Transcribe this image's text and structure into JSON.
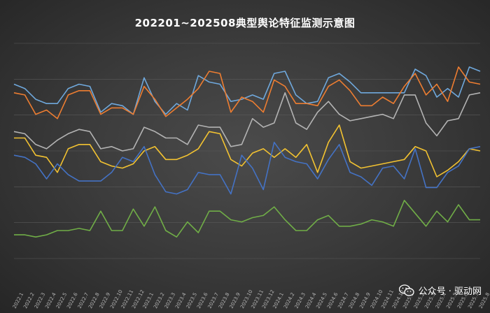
{
  "title": "202201~202508典型舆论特征监测示意图",
  "watermark": {
    "text": "公众号 · 驱动网",
    "icon": "wechat-icon"
  },
  "colors": {
    "background": "#3d3d3d"
  },
  "chart_data": {
    "type": "line",
    "title": "202201~202508典型舆论特征监测示意图",
    "xlabel": "",
    "ylabel": "",
    "grid": true,
    "legend": "none",
    "ylim": [
      0,
      100
    ],
    "x": [
      "2022.1",
      "2022.2",
      "2022.3",
      "2022.4",
      "2022.5",
      "2022.6",
      "2022.7",
      "2022.8",
      "2022.9",
      "2022.10",
      "2022.11",
      "2022.12",
      "2023.1",
      "2023.2",
      "2023.3",
      "2023.4",
      "2023.5",
      "2023.6",
      "2023.7",
      "2023.8",
      "2023.9",
      "2023.10",
      "2023.11",
      "2023.12",
      "2024.1",
      "2024.2",
      "2024.3",
      "2024.4",
      "2024.5",
      "2024.6",
      "2024.7",
      "2024.8",
      "2024.9",
      "2024.10",
      "2024.11",
      "2024.12",
      "2025.1",
      "2025.2",
      "2025.3",
      "2025.4",
      "2025.5",
      "2025.6",
      "2025.7",
      "2025.8"
    ],
    "series": [
      {
        "color": "#6fa8dc",
        "values": [
          81,
          79,
          74,
          72,
          72,
          79,
          81,
          80,
          68,
          72,
          71,
          67,
          84,
          73,
          67,
          72,
          69,
          85,
          82,
          81,
          73,
          74,
          76,
          74,
          86,
          87,
          76,
          72,
          73,
          84,
          86,
          82,
          77,
          77,
          77,
          77,
          77,
          88,
          85,
          75,
          79,
          75,
          89,
          87
        ]
      },
      {
        "color": "#ed7d31",
        "values": [
          77,
          76,
          67,
          69,
          65,
          76,
          78,
          78,
          67,
          70,
          70,
          67,
          80,
          74,
          66,
          70,
          74,
          79,
          87,
          86,
          68,
          75,
          73,
          68,
          83,
          80,
          72,
          72,
          71,
          80,
          83,
          78,
          71,
          71,
          75,
          72,
          80,
          86,
          76,
          81,
          73,
          89,
          82,
          81
        ]
      },
      {
        "color": "#b3b3b3",
        "values": [
          59,
          58,
          53,
          51,
          55,
          58,
          60,
          59,
          51,
          52,
          50,
          51,
          61,
          59,
          56,
          56,
          53,
          62,
          61,
          61,
          52,
          53,
          65,
          61,
          63,
          77,
          63,
          60,
          68,
          73,
          67,
          64,
          65,
          66,
          67,
          65,
          76,
          76,
          63,
          57,
          64,
          65,
          76,
          77
        ]
      },
      {
        "color": "#f2c231",
        "values": [
          56,
          56,
          48,
          47,
          40,
          51,
          53,
          53,
          45,
          43,
          42,
          44,
          50,
          52,
          46,
          46,
          48,
          51,
          59,
          58,
          46,
          43,
          49,
          51,
          47,
          51,
          47,
          53,
          40,
          54,
          62,
          45,
          42,
          43,
          44,
          45,
          46,
          52,
          50,
          38,
          41,
          45,
          51,
          50
        ]
      },
      {
        "color": "#4472c4",
        "values": [
          48,
          47,
          44,
          37,
          44,
          39,
          36,
          36,
          36,
          40,
          47,
          45,
          52,
          39,
          31,
          30,
          32,
          40,
          39,
          39,
          30,
          48,
          42,
          32,
          54,
          47,
          45,
          44,
          37,
          46,
          53,
          40,
          38,
          34,
          42,
          43,
          37,
          51,
          33,
          33,
          40,
          43,
          51,
          52
        ]
      },
      {
        "color": "#70ad47",
        "values": [
          11,
          11,
          10,
          11,
          13,
          13,
          14,
          13,
          22,
          13,
          13,
          23,
          15,
          24,
          13,
          10,
          17,
          12,
          22,
          22,
          18,
          17,
          19,
          20,
          24,
          18,
          13,
          13,
          18,
          20,
          15,
          15,
          16,
          18,
          17,
          15,
          27,
          21,
          15,
          22,
          17,
          25,
          18,
          18
        ]
      }
    ]
  }
}
